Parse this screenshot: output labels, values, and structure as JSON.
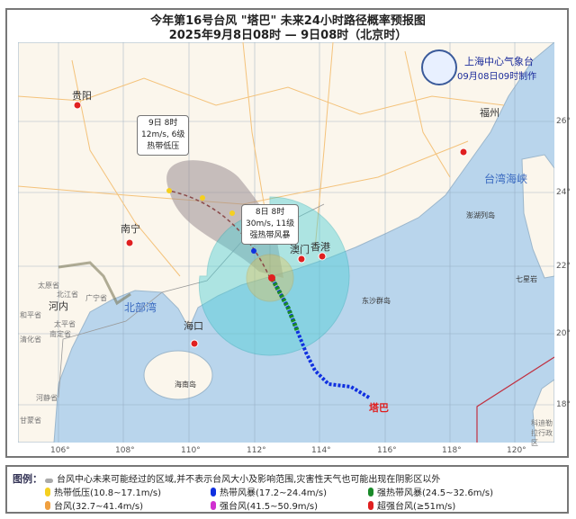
{
  "title": "今年第16号台风 \"塔巴\" 未来24小时路径概率预报图",
  "subtitle": "2025年9月8日08时 — 9日08时（北京时）",
  "agency": {
    "name": "上海中心气象台",
    "issued": "09月08日09时制作"
  },
  "map": {
    "lon_ticks": [
      "106°",
      "108°",
      "110°",
      "112°",
      "114°",
      "116°",
      "118°",
      "120°"
    ],
    "lat_ticks": [
      "26°",
      "24°",
      "22°",
      "20°",
      "18°"
    ],
    "cities": [
      "贵阳",
      "南宁",
      "海口",
      "澳门",
      "香港",
      "福州",
      "河内"
    ],
    "places": [
      "北部湾",
      "台湾海峡",
      "海南岛",
      "澎湖列岛",
      "东沙群岛",
      "七星岩",
      "北江省",
      "广宁省",
      "太原省",
      "和平省",
      "太平省",
      "南定省",
      "清化省",
      "河静省",
      "甘蒙省",
      "科迪勒拉行政区"
    ],
    "typhoon_name": "塔巴",
    "colors": {
      "sea": "#b9d5ec",
      "land": "#fbf6ec",
      "cone": "#9b8e93",
      "wind34": "#4fd0d6",
      "wind50": "#f0c040",
      "track_current": "#1a8a2a",
      "track_past": "#1030e0"
    }
  },
  "callouts": {
    "forecast": {
      "time": "9日 8时",
      "wind": "12m/s, 6级",
      "category": "热带低压"
    },
    "current": {
      "time": "8日 8时",
      "wind": "30m/s, 11级",
      "category": "强热带风暴"
    }
  },
  "legend": {
    "label": "图例：",
    "cone_note": "台风中心未来可能经过的区域,并不表示台风大小及影响范围,灾害性天气也可能出现在阴影区以外",
    "items": [
      {
        "text": "热带低压(10.8~17.1m/s)",
        "color": "#f5d020"
      },
      {
        "text": "热带风暴(17.2~24.4m/s)",
        "color": "#1030e0"
      },
      {
        "text": "强热带风暴(24.5~32.6m/s)",
        "color": "#1a8a2a"
      },
      {
        "text": "台风(32.7~41.4m/s)",
        "color": "#f0a040"
      },
      {
        "text": "强台风(41.5~50.9m/s)",
        "color": "#d030d0"
      },
      {
        "text": "超强台风(≥51m/s)",
        "color": "#e02020"
      }
    ]
  }
}
